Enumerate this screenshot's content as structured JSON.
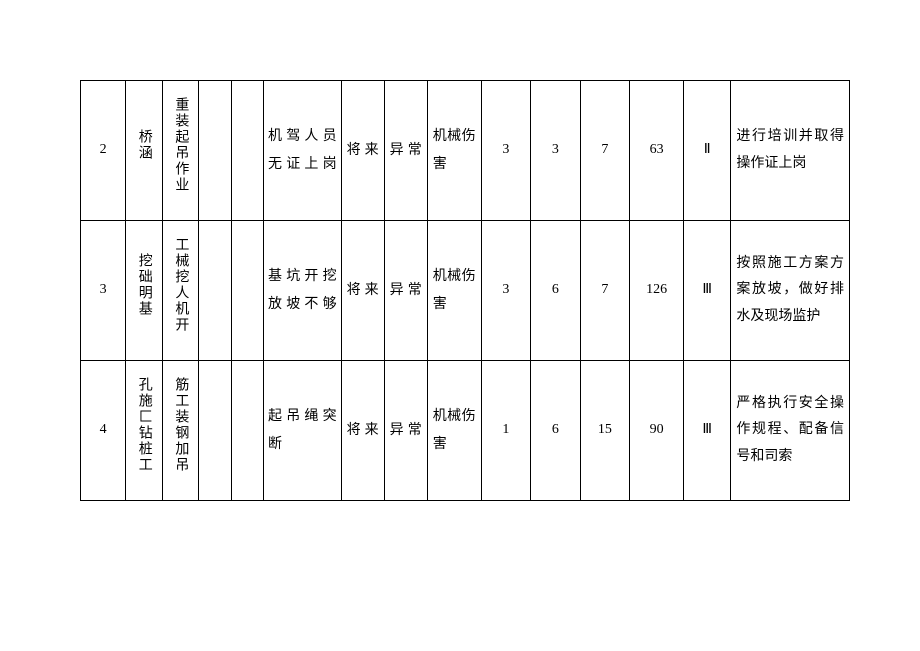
{
  "table": {
    "rows": [
      {
        "num": "2",
        "c2": "桥涵",
        "c3": "重装起吊作业",
        "c4": "",
        "c5": "",
        "hazard": "机驾人员无证上岗",
        "time": "将来",
        "state": "异常",
        "consequence": "机械伤害",
        "n1": "3",
        "n2": "3",
        "n3": "7",
        "n4": "63",
        "level": "Ⅱ",
        "measure": "进行培训并取得操作证上岗"
      },
      {
        "num": "3",
        "c2": "挖础明基",
        "c3": "工械挖人机开",
        "c4": "",
        "c5": "",
        "hazard": "基坑开挖放坡不够",
        "time": "将来",
        "state": "异常",
        "consequence": "机械伤害",
        "n1": "3",
        "n2": "6",
        "n3": "7",
        "n4": "126",
        "level": "Ⅲ",
        "measure": "按照施工方案方案放坡，做好排水及现场监护"
      },
      {
        "num": "4",
        "c2": "孔施匚钻桩工",
        "c3": "筋工装钢加吊",
        "c4": "",
        "c5": "",
        "hazard": "起吊绳突断",
        "time": "将来",
        "state": "异常",
        "consequence": "机械伤害",
        "n1": "1",
        "n2": "6",
        "n3": "15",
        "n4": "90",
        "level": "Ⅲ",
        "measure": "严格执行安全操作规程、配备信号和司索"
      }
    ]
  },
  "colors": {
    "border": "#000000",
    "text": "#000000",
    "background": "#ffffff"
  },
  "typography": {
    "font_family": "SimSun",
    "font_size_pt": 10.5,
    "line_height": 1.9
  }
}
